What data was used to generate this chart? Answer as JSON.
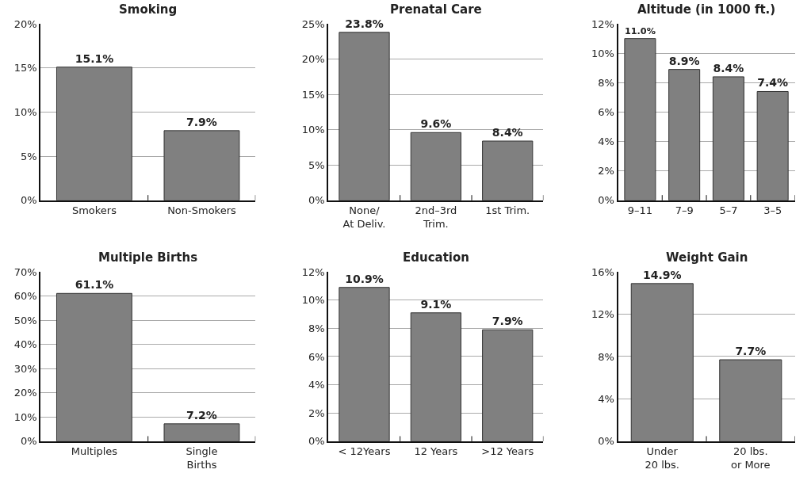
{
  "chart_data": [
    {
      "type": "bar",
      "title": "Smoking",
      "categories": [
        "Smokers",
        "Non-Smokers"
      ],
      "values": [
        15.1,
        7.9
      ],
      "value_labels": [
        "15.1%",
        "7.9%"
      ],
      "color": "#808080",
      "ylim": [
        0,
        20
      ],
      "yticks": [
        {
          "value": 0,
          "label": "0%"
        },
        {
          "value": 5,
          "label": "5%"
        },
        {
          "value": 10,
          "label": "10%"
        },
        {
          "value": 15,
          "label": "15%"
        },
        {
          "value": 20,
          "label": "20%"
        }
      ],
      "grid": "y"
    },
    {
      "type": "bar",
      "title": "Prenatal Care",
      "categories": [
        "None/\nAt Deliv.",
        "2nd–3rd\nTrim.",
        "1st Trim."
      ],
      "values": [
        23.8,
        9.6,
        8.4
      ],
      "value_labels": [
        "23.8%",
        "9.6%",
        "8.4%"
      ],
      "color": "#808080",
      "ylim": [
        0,
        25
      ],
      "yticks": [
        {
          "value": 0,
          "label": "0%"
        },
        {
          "value": 5,
          "label": "5%"
        },
        {
          "value": 10,
          "label": "10%"
        },
        {
          "value": 15,
          "label": "15%"
        },
        {
          "value": 20,
          "label": "20%"
        },
        {
          "value": 25,
          "label": "25%"
        }
      ],
      "grid": "y"
    },
    {
      "type": "bar",
      "title": "Altitude (in 1000 ft.)",
      "categories": [
        "9–11",
        "7–9",
        "5–7",
        "3–5"
      ],
      "values": [
        11.0,
        8.9,
        8.4,
        7.4
      ],
      "value_labels": [
        "11.0%",
        "8.9%",
        "8.4%",
        "7.4%"
      ],
      "color": "#808080",
      "ylim": [
        0,
        12
      ],
      "yticks": [
        {
          "value": 0,
          "label": "0%"
        },
        {
          "value": 2,
          "label": "2%"
        },
        {
          "value": 4,
          "label": "4%"
        },
        {
          "value": 6,
          "label": "6%"
        },
        {
          "value": 8,
          "label": "8%"
        },
        {
          "value": 10,
          "label": "10%"
        },
        {
          "value": 12,
          "label": "12%"
        }
      ],
      "grid": "y"
    },
    {
      "type": "bar",
      "title": "Multiple Births",
      "categories": [
        "Multiples",
        "Single\nBirths"
      ],
      "values": [
        61.1,
        7.2
      ],
      "value_labels": [
        "61.1%",
        "7.2%"
      ],
      "color": "#808080",
      "ylim": [
        0,
        70
      ],
      "yticks": [
        {
          "value": 0,
          "label": "0%"
        },
        {
          "value": 10,
          "label": "10%"
        },
        {
          "value": 20,
          "label": "20%"
        },
        {
          "value": 30,
          "label": "30%"
        },
        {
          "value": 40,
          "label": "40%"
        },
        {
          "value": 50,
          "label": "50%"
        },
        {
          "value": 60,
          "label": "60%"
        },
        {
          "value": 70,
          "label": "70%"
        }
      ],
      "grid": "y"
    },
    {
      "type": "bar",
      "title": "Education",
      "categories": [
        "< 12Years",
        "12 Years",
        ">12 Years"
      ],
      "values": [
        10.9,
        9.1,
        7.9
      ],
      "value_labels": [
        "10.9%",
        "9.1%",
        "7.9%"
      ],
      "color": "#808080",
      "ylim": [
        0,
        12
      ],
      "yticks": [
        {
          "value": 0,
          "label": "0%"
        },
        {
          "value": 2,
          "label": "2%"
        },
        {
          "value": 4,
          "label": "4%"
        },
        {
          "value": 6,
          "label": "6%"
        },
        {
          "value": 8,
          "label": "8%"
        },
        {
          "value": 10,
          "label": "10%"
        },
        {
          "value": 12,
          "label": "12%"
        }
      ],
      "grid": "y"
    },
    {
      "type": "bar",
      "title": "Weight Gain",
      "categories": [
        "Under\n20 lbs.",
        "20 lbs.\nor More"
      ],
      "values": [
        14.9,
        7.7
      ],
      "value_labels": [
        "14.9%",
        "7.7%"
      ],
      "color": "#808080",
      "ylim": [
        0,
        16
      ],
      "yticks": [
        {
          "value": 0,
          "label": "0%"
        },
        {
          "value": 4,
          "label": "4%"
        },
        {
          "value": 8,
          "label": "8%"
        },
        {
          "value": 12,
          "label": "12%"
        },
        {
          "value": 16,
          "label": "16%"
        }
      ],
      "grid": "y"
    }
  ]
}
